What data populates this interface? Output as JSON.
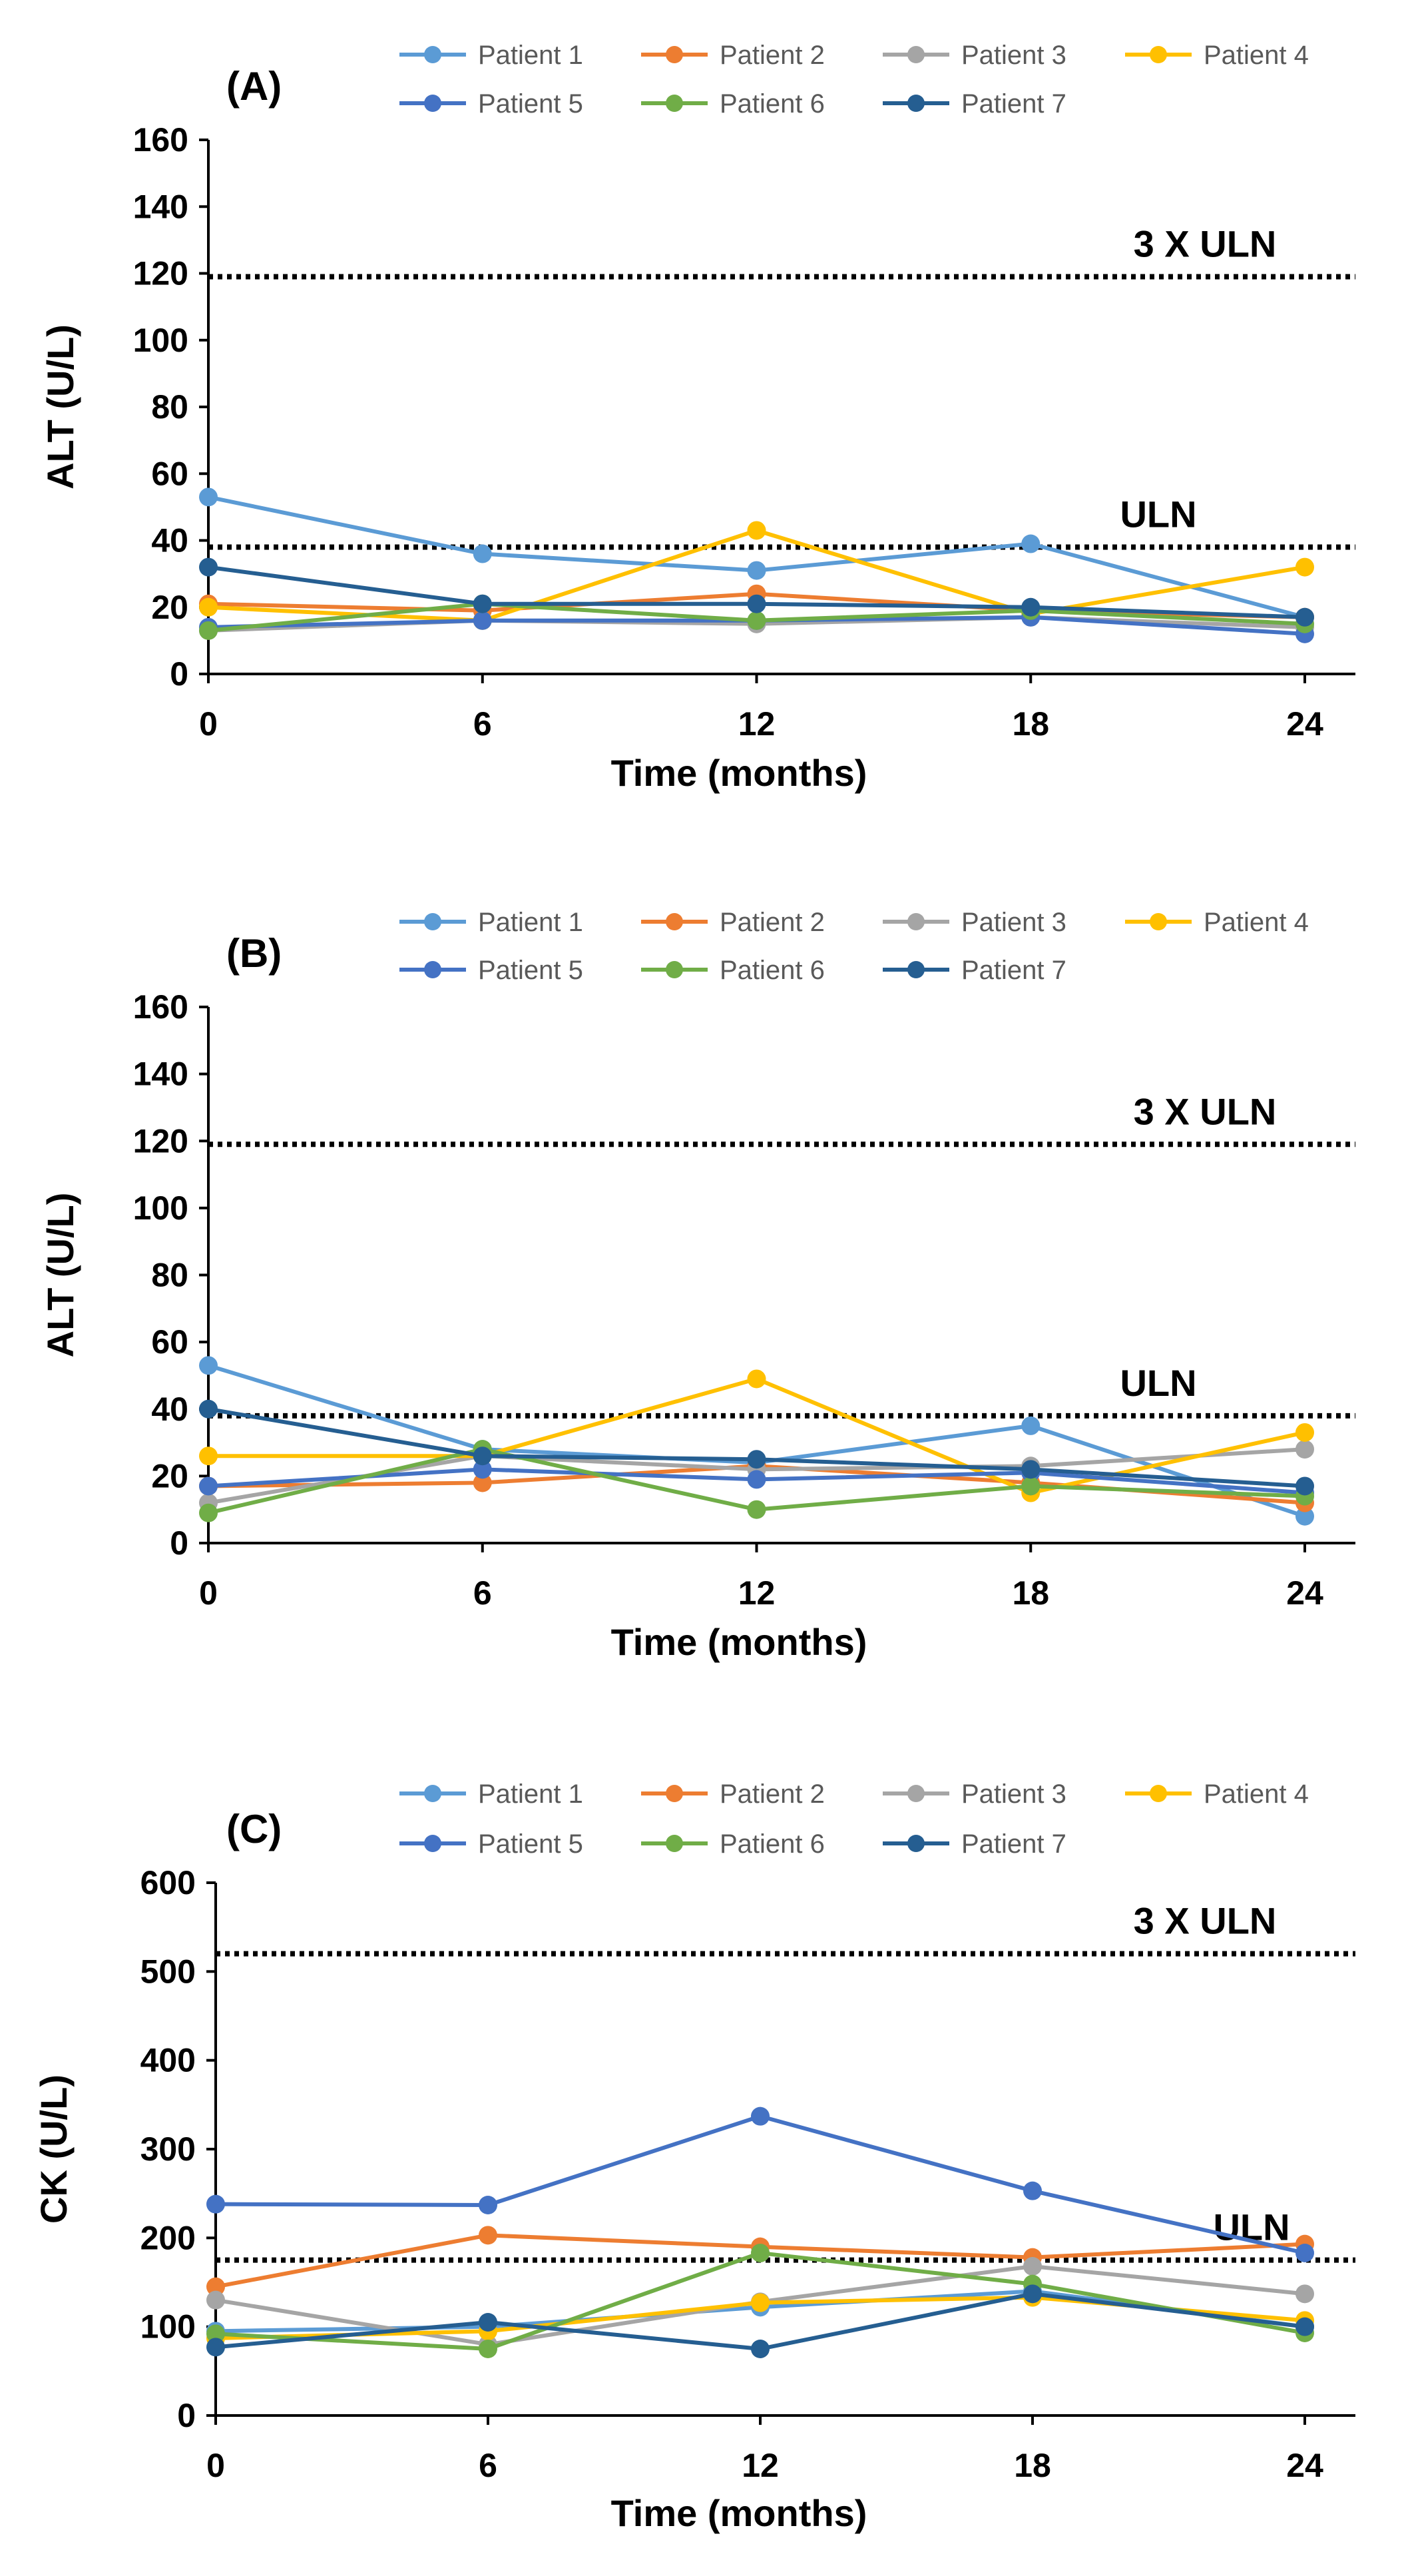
{
  "colors": {
    "Patient 1": "#5B9BD5",
    "Patient 2": "#ED7D31",
    "Patient 3": "#A5A5A5",
    "Patient 4": "#FFC000",
    "Patient 5": "#4472C4",
    "Patient 6": "#70AD47",
    "Patient 7": "#255E91"
  },
  "chart_data": [
    {
      "type": "line",
      "panel_label": "(A)",
      "xlabel": "Time (months)",
      "ylabel": "ALT (U/L)",
      "x": [
        0,
        6,
        12,
        18,
        24
      ],
      "x_tick_labels": [
        "0",
        "6",
        "12",
        "18",
        "24"
      ],
      "ylim": [
        0,
        160
      ],
      "y_ticks": [
        0,
        20,
        40,
        60,
        80,
        100,
        120,
        140,
        160
      ],
      "y_tick_labels": [
        "0",
        "20",
        "40",
        "60",
        "80",
        "100",
        "120",
        "140",
        "160"
      ],
      "grid": false,
      "legend_position": "top",
      "reference_lines": [
        {
          "label": "3 X ULN",
          "value": 119
        },
        {
          "label": "ULN",
          "value": 38
        }
      ],
      "series": [
        {
          "name": "Patient 1",
          "values": [
            53,
            36,
            31,
            39,
            17
          ]
        },
        {
          "name": "Patient 2",
          "values": [
            21,
            19,
            24,
            19,
            17
          ]
        },
        {
          "name": "Patient 3",
          "values": [
            13,
            16,
            15,
            17,
            14
          ]
        },
        {
          "name": "Patient 4",
          "values": [
            20,
            16,
            43,
            18,
            32
          ]
        },
        {
          "name": "Patient 5",
          "values": [
            14,
            16,
            16,
            17,
            12
          ]
        },
        {
          "name": "Patient 6",
          "values": [
            13,
            21,
            16,
            19,
            15
          ]
        },
        {
          "name": "Patient 7",
          "values": [
            32,
            21,
            21,
            20,
            17
          ]
        }
      ]
    },
    {
      "type": "line",
      "panel_label": "(B)",
      "xlabel": "Time (months)",
      "ylabel": "ALT (U/L)",
      "x": [
        0,
        6,
        12,
        18,
        24
      ],
      "x_tick_labels": [
        "0",
        "6",
        "12",
        "18",
        "24"
      ],
      "ylim": [
        0,
        160
      ],
      "y_ticks": [
        0,
        20,
        40,
        60,
        80,
        100,
        120,
        140,
        160
      ],
      "y_tick_labels": [
        "0",
        "20",
        "40",
        "60",
        "80",
        "100",
        "120",
        "140",
        "160"
      ],
      "grid": false,
      "legend_position": "top",
      "reference_lines": [
        {
          "label": "3 X ULN",
          "value": 119
        },
        {
          "label": "ULN",
          "value": 38
        }
      ],
      "series": [
        {
          "name": "Patient 1",
          "values": [
            53,
            28,
            24,
            35,
            8
          ]
        },
        {
          "name": "Patient 2",
          "values": [
            17,
            18,
            23,
            18,
            12
          ]
        },
        {
          "name": "Patient 3",
          "values": [
            12,
            26,
            22,
            23,
            28
          ]
        },
        {
          "name": "Patient 4",
          "values": [
            26,
            26,
            49,
            15,
            33
          ]
        },
        {
          "name": "Patient 5",
          "values": [
            17,
            22,
            19,
            21,
            15
          ]
        },
        {
          "name": "Patient 6",
          "values": [
            9,
            28,
            10,
            17,
            14
          ]
        },
        {
          "name": "Patient 7",
          "values": [
            40,
            26,
            25,
            22,
            17
          ]
        }
      ]
    },
    {
      "type": "line",
      "panel_label": "(C)",
      "xlabel": "Time (months)",
      "ylabel": "CK (U/L)",
      "x": [
        0,
        6,
        12,
        18,
        24
      ],
      "x_tick_labels": [
        "0",
        "6",
        "12",
        "18",
        "24"
      ],
      "ylim": [
        0,
        600
      ],
      "y_ticks": [
        0,
        100,
        200,
        300,
        400,
        500,
        600
      ],
      "y_tick_labels": [
        "0",
        "100",
        "200",
        "300",
        "400",
        "500",
        "600"
      ],
      "grid": false,
      "legend_position": "top",
      "reference_lines": [
        {
          "label": "3 X ULN",
          "value": 520
        },
        {
          "label": "ULN",
          "value": 175
        }
      ],
      "series": [
        {
          "name": "Patient 1",
          "values": [
            95,
            100,
            122,
            140,
            100
          ]
        },
        {
          "name": "Patient 2",
          "values": [
            145,
            203,
            190,
            178,
            193
          ]
        },
        {
          "name": "Patient 3",
          "values": [
            130,
            80,
            128,
            168,
            137
          ]
        },
        {
          "name": "Patient 4",
          "values": [
            87,
            95,
            127,
            133,
            107
          ]
        },
        {
          "name": "Patient 5",
          "values": [
            238,
            237,
            337,
            253,
            183
          ]
        },
        {
          "name": "Patient 6",
          "values": [
            92,
            75,
            183,
            148,
            93
          ]
        },
        {
          "name": "Patient 7",
          "values": [
            77,
            105,
            75,
            137,
            100
          ]
        }
      ]
    }
  ]
}
